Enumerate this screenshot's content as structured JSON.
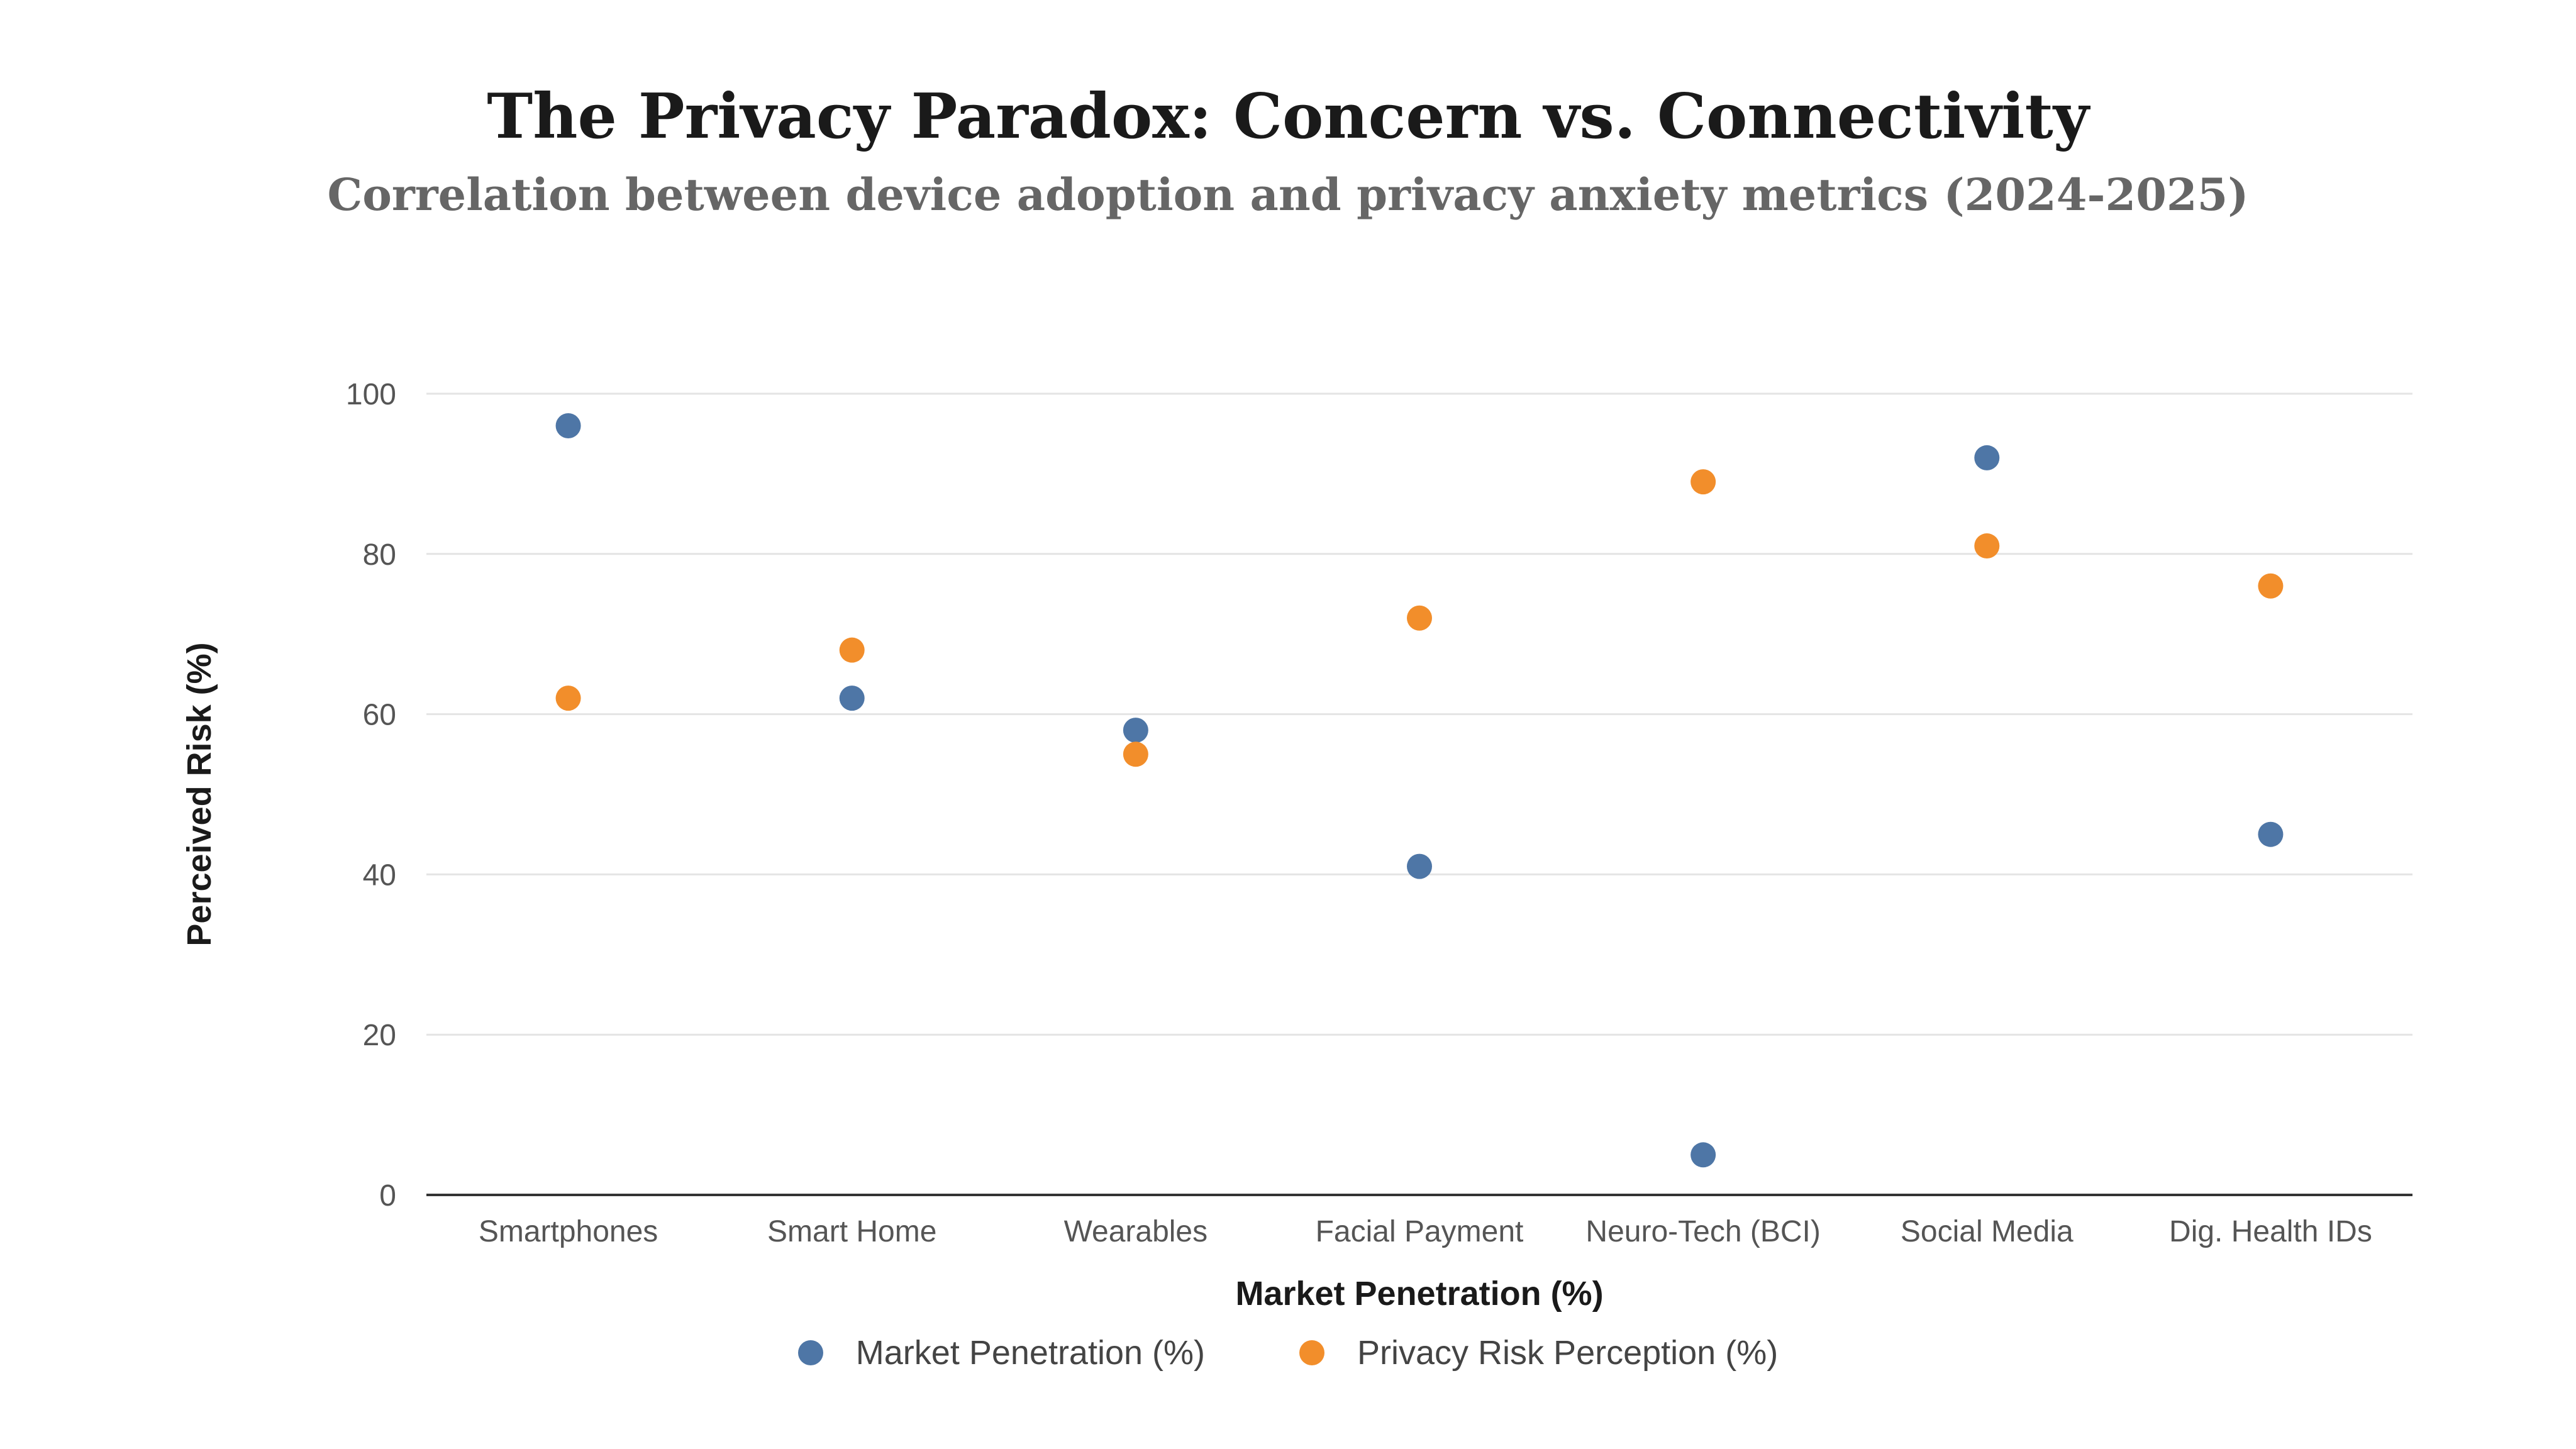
{
  "chart_data": {
    "type": "scatter",
    "title": "The Privacy Paradox: Concern vs. Connectivity",
    "subtitle": "Correlation between device adoption and privacy anxiety metrics (2024-2025)",
    "xlabel": "Market Penetration (%)",
    "ylabel": "Perceived Risk (%)",
    "categories": [
      "Smartphones",
      "Smart Home",
      "Wearables",
      "Facial Payment",
      "Neuro-Tech (BCI)",
      "Social Media",
      "Dig. Health IDs"
    ],
    "ylim": [
      0,
      100
    ],
    "yticks": [
      0,
      20,
      40,
      60,
      80,
      100
    ],
    "grid": true,
    "legend_position": "bottom-center",
    "series": [
      {
        "name": "Market Penetration (%)",
        "color": "#4e76a6",
        "values": [
          96,
          62,
          58,
          41,
          5,
          92,
          45
        ]
      },
      {
        "name": "Privacy Risk Perception (%)",
        "color": "#f28e2b",
        "values": [
          62,
          68,
          55,
          72,
          89,
          81,
          76
        ]
      }
    ]
  }
}
